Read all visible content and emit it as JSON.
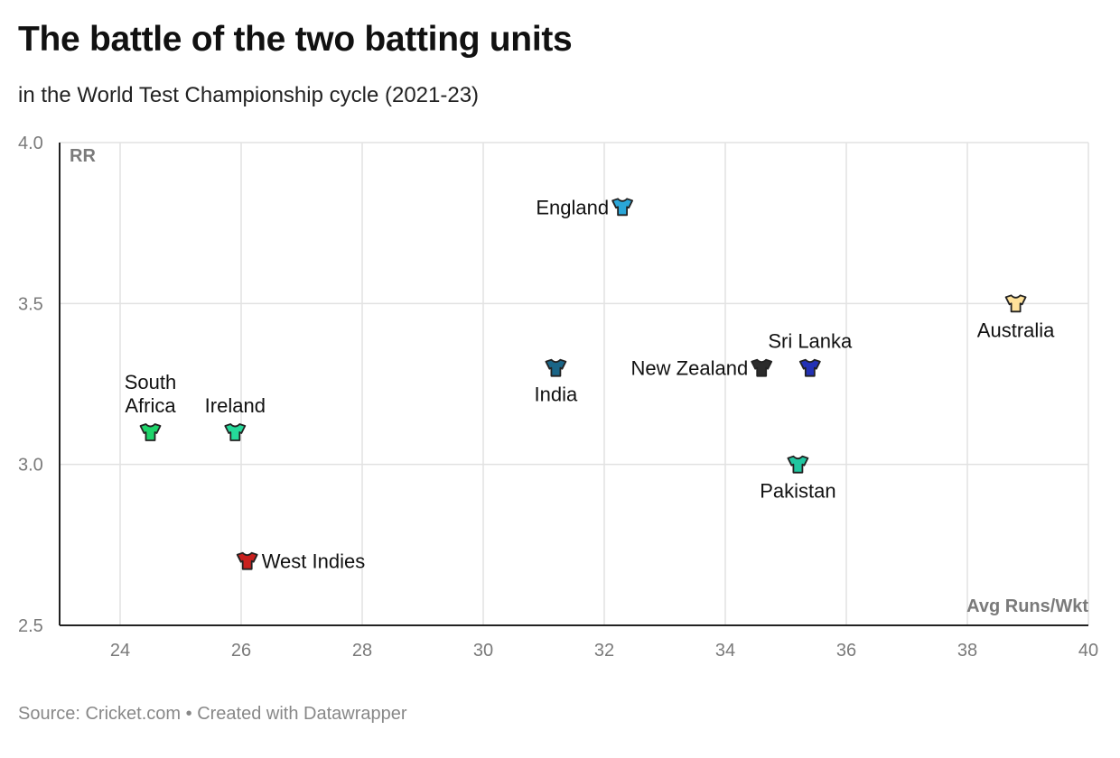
{
  "header": {
    "title": "The battle of the two batting units",
    "subtitle": "in the World Test Championship cycle (2021-23)"
  },
  "footer": {
    "source": "Source: Cricket.com",
    "separator": "•",
    "credit": "Created with Datawrapper"
  },
  "chart_data": {
    "type": "scatter",
    "title": "The battle of the two batting units",
    "subtitle": "in the World Test Championship cycle (2021-23)",
    "xlabel": "Avg Runs/Wkt",
    "ylabel": "RR",
    "xlim": [
      23,
      40
    ],
    "ylim": [
      2.5,
      4.0
    ],
    "xticks": [
      "24",
      "26",
      "28",
      "30",
      "32",
      "34",
      "36",
      "38",
      "40"
    ],
    "yticks": [
      "2.5",
      "3.0",
      "3.5",
      "4.0"
    ],
    "grid": true,
    "marker": "jersey-icon",
    "points": [
      {
        "team": "South Africa",
        "label_lines": [
          "South",
          "Africa"
        ],
        "x": 24.5,
        "y": 3.1,
        "color": "#1ed46a",
        "label_pos": "above"
      },
      {
        "team": "Ireland",
        "label_lines": [
          "Ireland"
        ],
        "x": 25.9,
        "y": 3.1,
        "color": "#25d99a",
        "label_pos": "above"
      },
      {
        "team": "West Indies",
        "label_lines": [
          "West Indies"
        ],
        "x": 26.1,
        "y": 2.7,
        "color": "#c8201e",
        "label_pos": "right"
      },
      {
        "team": "India",
        "label_lines": [
          "India"
        ],
        "x": 31.2,
        "y": 3.3,
        "color": "#1a6587",
        "label_pos": "below"
      },
      {
        "team": "England",
        "label_lines": [
          "England"
        ],
        "x": 32.3,
        "y": 3.8,
        "color": "#2aa6d8",
        "label_pos": "left"
      },
      {
        "team": "New Zealand",
        "label_lines": [
          "New Zealand"
        ],
        "x": 34.6,
        "y": 3.3,
        "color": "#2b2b2b",
        "label_pos": "left"
      },
      {
        "team": "Sri Lanka",
        "label_lines": [
          "Sri Lanka"
        ],
        "x": 35.4,
        "y": 3.3,
        "color": "#2331b5",
        "label_pos": "above"
      },
      {
        "team": "Pakistan",
        "label_lines": [
          "Pakistan"
        ],
        "x": 35.2,
        "y": 3.0,
        "color": "#20c6a0",
        "label_pos": "below"
      },
      {
        "team": "Australia",
        "label_lines": [
          "Australia"
        ],
        "x": 38.8,
        "y": 3.5,
        "color": "#ffe29a",
        "label_pos": "below"
      }
    ]
  }
}
